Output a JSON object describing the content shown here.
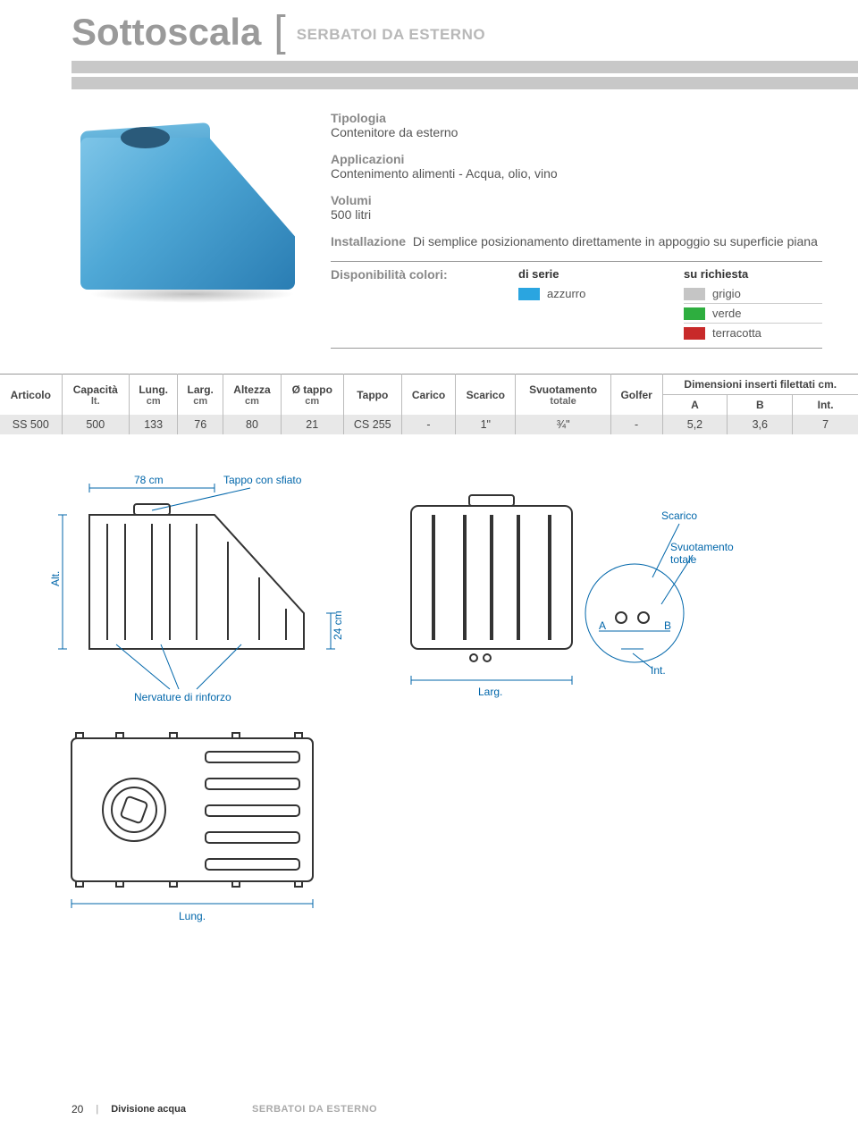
{
  "header": {
    "title": "Sottoscala",
    "subtitle": "SERBATOI DA ESTERNO"
  },
  "specs": {
    "tipologia_label": "Tipologia",
    "tipologia_value": "Contenitore da esterno",
    "applicazioni_label": "Applicazioni",
    "applicazioni_value": "Contenimento alimenti - Acqua, olio, vino",
    "volumi_label": "Volumi",
    "volumi_value": "500 litri",
    "installazione_label": "Installazione",
    "installazione_value": "Di semplice posizionamento direttamente in appoggio su superficie piana",
    "colori_label": "Disponibilità colori:",
    "serie_head": "di serie",
    "richiesta_head": "su richiesta",
    "serie_colors": [
      {
        "name": "azzurro",
        "hex": "#2aa5e0"
      }
    ],
    "richiesta_colors": [
      {
        "name": "grigio",
        "hex": "#c5c5c5"
      },
      {
        "name": "verde",
        "hex": "#2eae3f"
      },
      {
        "name": "terracotta",
        "hex": "#c82a2a"
      }
    ]
  },
  "table": {
    "headers": {
      "articolo": "Articolo",
      "capacita": "Capacità",
      "capacita_unit": "lt.",
      "lung": "Lung.",
      "lung_unit": "cm",
      "larg": "Larg.",
      "larg_unit": "cm",
      "altezza": "Altezza",
      "altezza_unit": "cm",
      "diam_tappo": "Ø tappo",
      "diam_tappo_unit": "cm",
      "tappo": "Tappo",
      "carico": "Carico",
      "scarico": "Scarico",
      "svuotamento": "Svuotamento",
      "svuotamento_sub": "totale",
      "golfer": "Golfer",
      "dim_group": "Dimensioni inserti filettati cm.",
      "dim_a": "A",
      "dim_b": "B",
      "dim_int": "Int."
    },
    "row": {
      "articolo": "SS 500",
      "capacita": "500",
      "lung": "133",
      "larg": "76",
      "altezza": "80",
      "diam_tappo": "21",
      "tappo": "CS 255",
      "carico": "-",
      "scarico": "1\"",
      "svuotamento": "¾\"",
      "golfer": "-",
      "dim_a": "5,2",
      "dim_b": "3,6",
      "dim_int": "7"
    }
  },
  "diagram": {
    "width_label": "78 cm",
    "tappo_label": "Tappo con sfiato",
    "alt_label": "Alt.",
    "nervature_label": "Nervature di rinforzo",
    "height24_label": "24 cm",
    "larg_label": "Larg.",
    "scarico_label": "Scarico",
    "svuotamento_label": "Svuotamento",
    "svuotamento_label2": "totale",
    "a_label": "A",
    "b_label": "B",
    "int_label": "Int.",
    "lung_label": "Lung.",
    "stroke_color": "#0066aa",
    "line_color": "#333333"
  },
  "footer": {
    "page": "20",
    "division": "Divisione acqua",
    "category": "SERBATOI DA ESTERNO"
  }
}
